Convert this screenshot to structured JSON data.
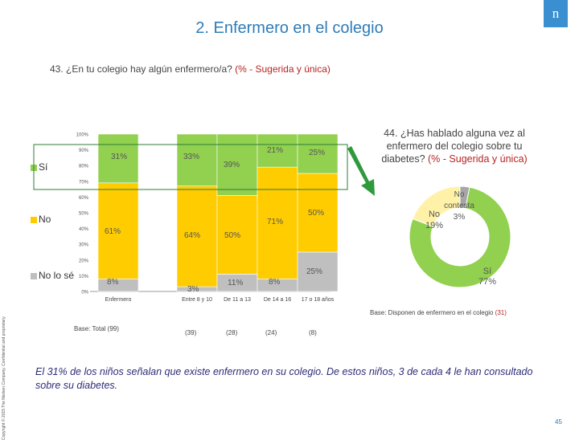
{
  "header": {
    "title": "2. Enfermero en el colegio",
    "logo_text": "n"
  },
  "q43": {
    "question": "43. ¿En tu colegio hay algún enfermero/a?",
    "qualifier": "(% - Sugerida y única)"
  },
  "q44": {
    "question": "44. ¿Has hablado alguna vez al enfermero del colegio sobre tu diabetes?",
    "qualifier": "(% - Sugerida y única)"
  },
  "legend": [
    {
      "label": "Sí",
      "color": "#92d050"
    },
    {
      "label": "No",
      "color": "#ffcc00"
    },
    {
      "label": "No lo sé",
      "color": "#bfbfbf"
    }
  ],
  "base_left": "Base: Total (99)",
  "base_right_prefix": "Base: Disponen de enfermero en el colegio",
  "base_right_n": "(31)",
  "group_bases": [
    "(39)",
    "(28)",
    "(24)",
    "(8)"
  ],
  "copyright": "Copyright © 2015 The Nielsen Company. Confidential and proprietary.",
  "conclusion": "El 31% de los niños señalan que existe enfermero en su colegio. De estos niños, 3 de cada 4 le han consultado sobre su diabetes.",
  "page_number": "45",
  "chart_data": [
    {
      "type": "bar",
      "stacked": true,
      "categories": [
        "Enfermero",
        "Entre 8 y 10",
        "De 11 a 13",
        "De 14 a 16",
        "17 o 18 años"
      ],
      "y_ticks": [
        "0%",
        "10%",
        "20%",
        "30%",
        "40%",
        "50%",
        "60%",
        "70%",
        "80%",
        "90%",
        "100%"
      ],
      "ylim": [
        0,
        100
      ],
      "series": [
        {
          "name": "Sí",
          "color": "#92d050",
          "values": [
            31,
            33,
            39,
            21,
            25
          ],
          "labels": [
            "31%",
            "33%",
            "39%",
            "21%",
            "25%"
          ]
        },
        {
          "name": "No",
          "color": "#ffcc00",
          "values": [
            61,
            64,
            50,
            71,
            50
          ],
          "labels": [
            "61%",
            "64%",
            "50%",
            "71%",
            "50%"
          ]
        },
        {
          "name": "No lo sé",
          "color": "#bfbfbf",
          "values": [
            8,
            3,
            11,
            8,
            25
          ],
          "labels": [
            "8%",
            "3%",
            "11%",
            "8%",
            "25%"
          ]
        }
      ]
    },
    {
      "type": "pie",
      "donut": true,
      "slices": [
        {
          "name": "Sí",
          "value": 77,
          "label": "Sí\n77%",
          "color": "#92d050"
        },
        {
          "name": "No",
          "value": 19,
          "label": "No\n19%",
          "color": "#fff2a8"
        },
        {
          "name": "No contesta",
          "value": 3,
          "label": "No contesta 3%",
          "color": "#a6a6a6"
        }
      ]
    }
  ]
}
